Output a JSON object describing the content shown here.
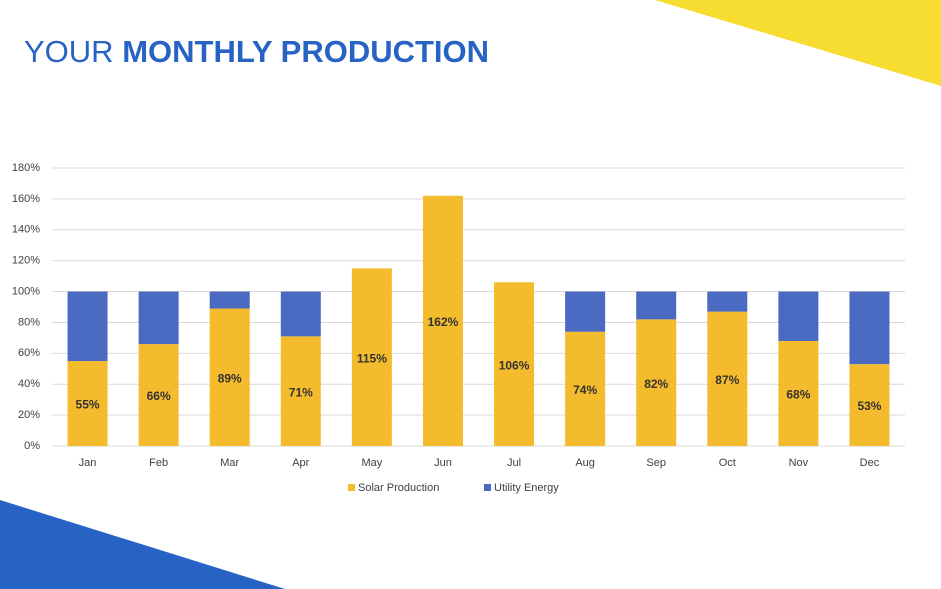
{
  "chart_data": {
    "type": "stacked_bar",
    "title": "YOUR MONTHLY PRODUCTION",
    "categories": [
      "Jan",
      "Feb",
      "Mar",
      "Apr",
      "May",
      "Jun",
      "Jul",
      "Aug",
      "Sep",
      "Oct",
      "Nov",
      "Dec"
    ],
    "series": [
      {
        "name": "Solar Production",
        "color": "#f4bb2c",
        "values": [
          55,
          66,
          89,
          71,
          115,
          162,
          106,
          74,
          82,
          87,
          68,
          53
        ],
        "value_labels": [
          "55%",
          "66%",
          "89%",
          "71%",
          "115%",
          "162%",
          "106%",
          "74%",
          "82%",
          "87%",
          "68%",
          "53%"
        ]
      },
      {
        "name": "Utility Energy",
        "color": "#4a69c1",
        "values": [
          45,
          34,
          11,
          29,
          0,
          0,
          0,
          26,
          18,
          13,
          32,
          47
        ]
      }
    ],
    "ylim": [
      0,
      180
    ],
    "yticks": [
      {
        "value": 0,
        "label": "0%"
      },
      {
        "value": 20,
        "label": "20%"
      },
      {
        "value": 40,
        "label": "40%"
      },
      {
        "value": 60,
        "label": "60%"
      },
      {
        "value": 80,
        "label": "80%"
      },
      {
        "value": 100,
        "label": "100%"
      },
      {
        "value": 120,
        "label": "120%"
      },
      {
        "value": 140,
        "label": "140%"
      },
      {
        "value": 160,
        "label": "160%"
      },
      {
        "value": 180,
        "label": "180%"
      }
    ],
    "grid": true,
    "legend": "bottom"
  }
}
